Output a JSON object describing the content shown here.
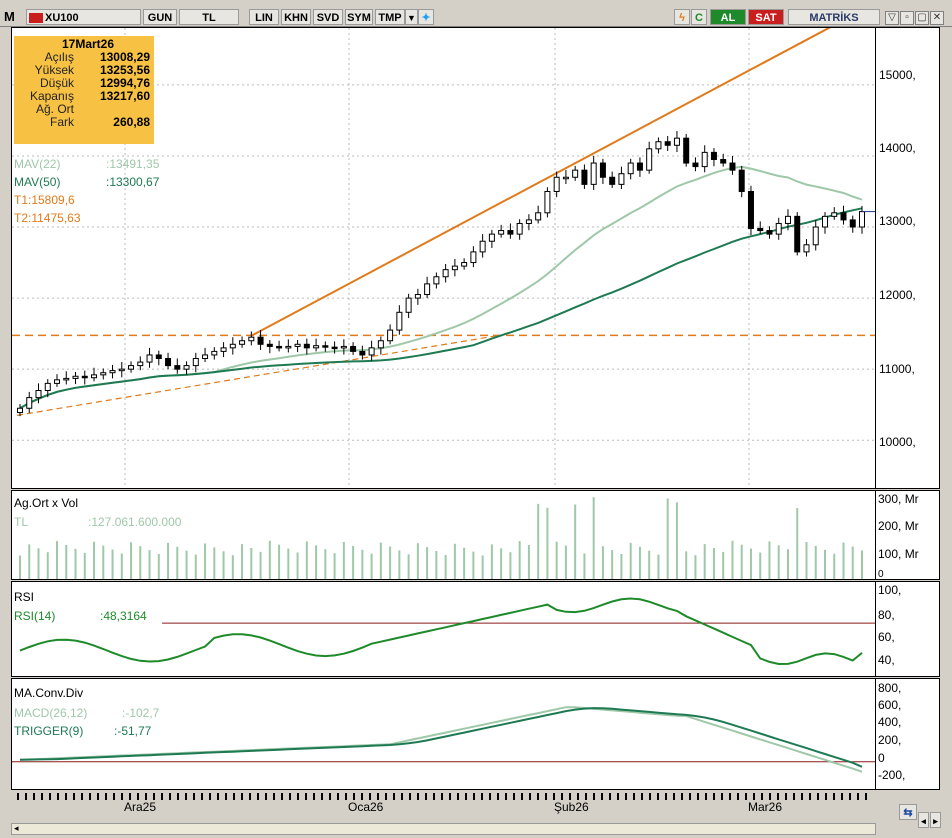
{
  "toolbar": {
    "logo": "M",
    "symbol": "XU100",
    "buttons": [
      "GUN",
      "TL",
      "LIN",
      "KHN",
      "SVD",
      "SYM",
      "TMP"
    ],
    "al_label": "AL",
    "sat_label": "SAT",
    "brand": "MATRİKS"
  },
  "info": {
    "date": "17Mart26",
    "rows": [
      {
        "label": "Açılış",
        "value": "13008,29"
      },
      {
        "label": "Yüksek",
        "value": "13253,56"
      },
      {
        "label": "Düşük",
        "value": "12994,76"
      },
      {
        "label": "Kapanış",
        "value": "13217,60"
      },
      {
        "label": "Ağ. Ort",
        "value": ""
      },
      {
        "label": "Fark",
        "value": "260,88"
      }
    ]
  },
  "price_legend": {
    "mav22_label": "MAV(22)",
    "mav22_value": ":13491,35",
    "mav50_label": "MAV(50)",
    "mav50_value": ":13300,67",
    "t1": "T1:15809,6",
    "t2": "T2:11475,63"
  },
  "volume_legend": {
    "title": "Ag.Ort x Vol",
    "unit": "TL",
    "value": ":127.061.600.000"
  },
  "rsi_legend": {
    "title": "RSI",
    "label": "RSI(14)",
    "value": ":48,3164"
  },
  "macd_legend": {
    "title": "MA.Conv.Div",
    "macd_label": "MACD(26,12)",
    "macd_value": ":-102,7",
    "trigger_label": "TRIGGER(9)",
    "trigger_value": ":-51,77"
  },
  "price_axis": [
    "15000,",
    "14000,",
    "13000,",
    "12000,",
    "11000,",
    "10000,"
  ],
  "volume_axis": [
    "300, Mr",
    "200, Mr",
    "100, Mr",
    "0"
  ],
  "rsi_axis": [
    "100,",
    "80,",
    "60,",
    "40,"
  ],
  "macd_axis": [
    "800,",
    "600,",
    "400,",
    "200,",
    "0",
    "-200,"
  ],
  "date_labels": [
    "Ara25",
    "Oca26",
    "Şub26",
    "Mar26"
  ],
  "colors": {
    "mav22": "#9fc8a8",
    "mav50": "#1e7a52",
    "trend": "#e07a1a",
    "rsi": "#1e8a2a",
    "al": "#1e8a2a",
    "sat": "#c81e1e",
    "info_bg": "#f7c244"
  },
  "chart_data": {
    "type": "candlestick",
    "symbol": "XU100",
    "ylim": [
      9300,
      15800
    ],
    "ohlc_close_approx": [
      10450,
      10600,
      10700,
      10800,
      10850,
      10870,
      10900,
      10880,
      10920,
      10950,
      10980,
      11000,
      11050,
      11100,
      11200,
      11150,
      11050,
      11000,
      11050,
      11150,
      11200,
      11250,
      11300,
      11350,
      11400,
      11450,
      11350,
      11320,
      11300,
      11320,
      11350,
      11300,
      11330,
      11310,
      11300,
      11320,
      11250,
      11200,
      11300,
      11400,
      11550,
      11800,
      12000,
      12050,
      12200,
      12300,
      12400,
      12450,
      12500,
      12650,
      12800,
      12900,
      12950,
      12900,
      13050,
      13100,
      13200,
      13500,
      13700,
      13700,
      13800,
      13600,
      13900,
      13700,
      13600,
      13750,
      13900,
      13800,
      14100,
      14200,
      14150,
      14250,
      13900,
      13850,
      14050,
      13950,
      13900,
      13800,
      13500,
      12980,
      12950,
      12900,
      13050,
      13150,
      12650,
      12750,
      13000,
      13150,
      13200,
      13100,
      13000,
      13217
    ],
    "mav22_value": 13491.35,
    "mav50_value": 13300.67,
    "trend_t1": 15809.6,
    "trend_t2": 11475.63,
    "volume_ylim": [
      0,
      300
    ],
    "rsi_ylim": [
      30,
      100
    ],
    "rsi_value": 48.3164,
    "macd_ylim": [
      -300,
      850
    ],
    "macd_value": -102.7,
    "trigger_value": -51.77
  }
}
